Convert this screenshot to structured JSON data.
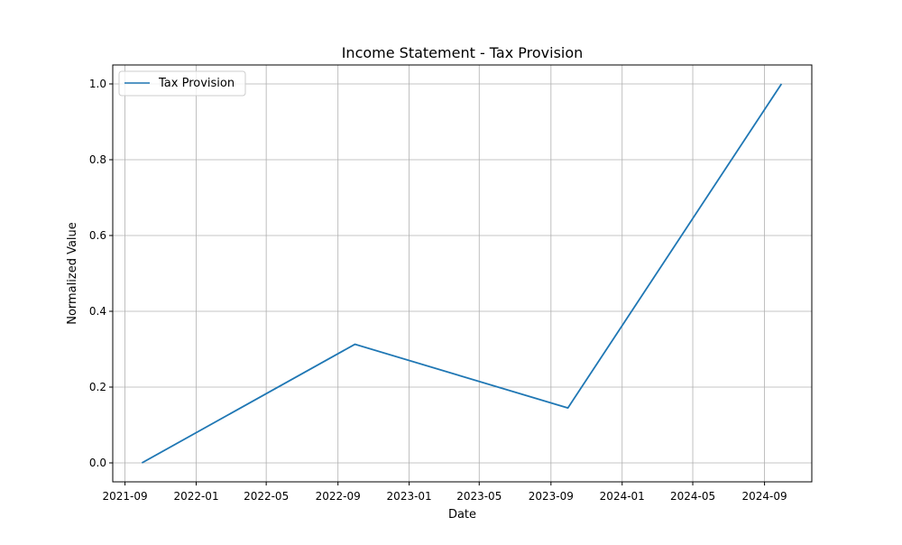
{
  "chart_data": {
    "type": "line",
    "title": "Income Statement - Tax Provision",
    "xlabel": "Date",
    "ylabel": "Normalized Value",
    "x_axis_type": "date",
    "xlim": [
      "2021-08-11",
      "2024-11-21"
    ],
    "ylim": [
      -0.05,
      1.05
    ],
    "x_ticks": [
      "2021-09-01",
      "2022-01-01",
      "2022-05-01",
      "2022-09-01",
      "2023-01-01",
      "2023-05-01",
      "2023-09-01",
      "2024-01-01",
      "2024-05-01",
      "2024-09-01"
    ],
    "x_tick_labels": [
      "2021-09",
      "2022-01",
      "2022-05",
      "2022-09",
      "2023-01",
      "2023-05",
      "2023-09",
      "2024-01",
      "2024-05",
      "2024-09"
    ],
    "y_ticks": [
      0.0,
      0.2,
      0.4,
      0.6,
      0.8,
      1.0
    ],
    "y_tick_labels": [
      "0.0",
      "0.2",
      "0.4",
      "0.6",
      "0.8",
      "1.0"
    ],
    "grid": true,
    "legend_position": "top-left",
    "series": [
      {
        "name": "Tax Provision",
        "color": "#1f77b4",
        "x": [
          "2021-09-30",
          "2022-09-30",
          "2023-09-30",
          "2024-09-30"
        ],
        "y": [
          0.0,
          0.313,
          0.145,
          1.0
        ]
      }
    ]
  }
}
